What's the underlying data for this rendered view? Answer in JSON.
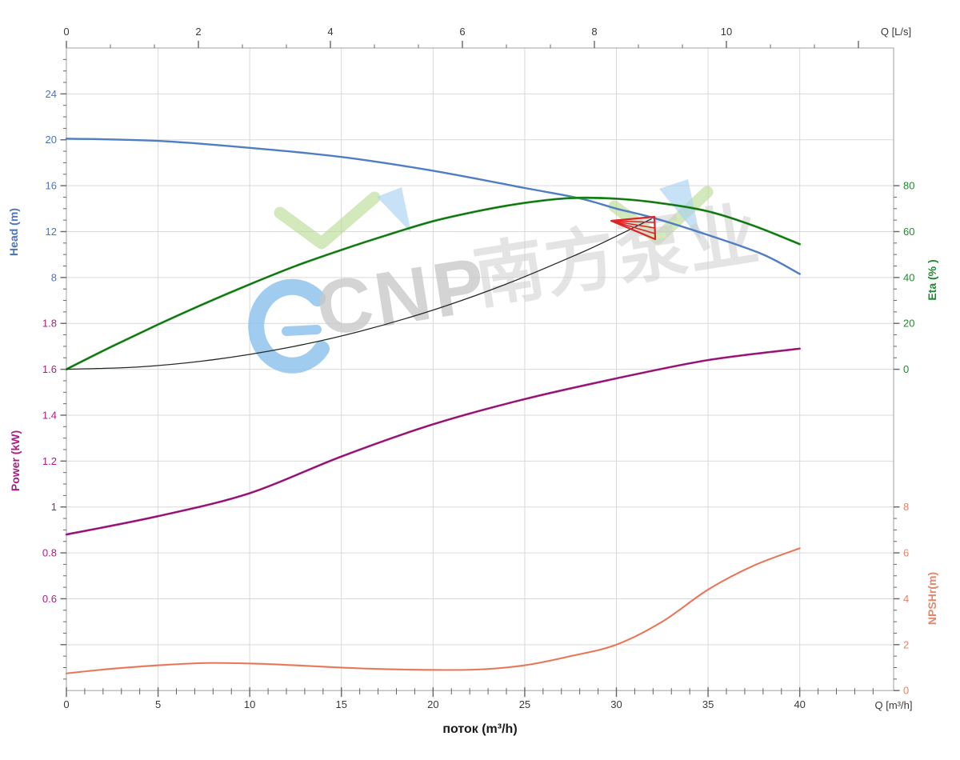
{
  "watermark": {
    "brand": "CNP",
    "cn_text": "南方泵业"
  },
  "labels": {
    "top_axis_unit": "Q [L/s]",
    "bottom_axis_unit": "Q [m³/h]",
    "x_title": "поток (m³/h)",
    "head_title": "Head (m)",
    "power_title": "Power (kW)",
    "eta_title": "Eta (% )",
    "npshr_title": "NPSHr(m)"
  },
  "colors": {
    "head": "#4a74c4",
    "head_curve": "#4f7ec2",
    "power": "#aa1d85",
    "power_curve": "#b02590",
    "power_core": "#7d0f5e",
    "eta": "#1f8b2e",
    "eta_curve": "#2a9a2a",
    "eta_core": "#0d5c0d",
    "npshr": "#e8846a",
    "npshr_curve": "#ee8a70",
    "npshr_core": "#e2704f",
    "system_curve": "#222b22",
    "flag": "#e12222",
    "grid": "#d9d9d9",
    "border": "#b0b0b0",
    "tick": "#666666",
    "axis_text": "#3a3a3a"
  },
  "chart_data": {
    "type": "line",
    "title": "",
    "grid": true,
    "x_axis": {
      "label": "поток (m³/h)",
      "unit": "m³/h",
      "range": [
        0,
        45
      ],
      "major_ticks": [
        0,
        5,
        10,
        15,
        20,
        25,
        30,
        35,
        40
      ],
      "minor_step": 1
    },
    "top_axis": {
      "unit": "L/s",
      "range": [
        0,
        12.5
      ],
      "major_ticks": [
        0,
        2,
        4,
        6,
        8,
        10
      ],
      "unlabeled_major": [
        12
      ],
      "minor_step": 0.6667
    },
    "y_axes": [
      {
        "id": "head",
        "label": "Head (m)",
        "ticks": [
          24,
          20,
          16,
          12,
          8
        ],
        "row_start": 1
      },
      {
        "id": "power",
        "label": "Power (kW)",
        "ticks": [
          1.8,
          1.6,
          1.4,
          1.2,
          1,
          0.8,
          0.6
        ],
        "row_start": 6
      },
      {
        "id": "eta",
        "label": "Eta (% )",
        "ticks": [
          80,
          60,
          40,
          20,
          0
        ],
        "row_start": 3
      },
      {
        "id": "npshr",
        "label": "NPSHr(m)",
        "ticks": [
          8,
          6,
          4,
          2,
          0
        ],
        "row_start": 10
      }
    ],
    "series": [
      {
        "name": "head",
        "axis": "head",
        "width": 2.4,
        "x": [
          0,
          5,
          10,
          15,
          20,
          25,
          28,
          30,
          32,
          35,
          38,
          40
        ],
        "y": [
          20.1,
          19.9,
          19.3,
          18.5,
          17.3,
          15.8,
          14.9,
          14.0,
          13.2,
          11.7,
          10.0,
          8.3
        ]
      },
      {
        "name": "eta",
        "axis": "eta",
        "width": 2.8,
        "x": [
          0,
          2.5,
          5,
          7.5,
          10,
          12.5,
          15,
          17.5,
          20,
          22.5,
          25,
          27.5,
          30,
          32.5,
          35,
          37.5,
          40
        ],
        "y": [
          0,
          10,
          19.5,
          28.5,
          37,
          45,
          52,
          58.5,
          64.5,
          69,
          72.5,
          74.6,
          74.3,
          72.3,
          68.8,
          62.5,
          54.5
        ]
      },
      {
        "name": "system",
        "axis": "head",
        "width": 1.3,
        "x": [
          0,
          4,
          8,
          12,
          16,
          20,
          24,
          28,
          30,
          31.9
        ],
        "y": [
          0,
          0.21,
          0.83,
          1.86,
          3.3,
          5.16,
          7.43,
          10.11,
          11.6,
          13.1
        ]
      },
      {
        "name": "power",
        "axis": "power",
        "width": 2.6,
        "x": [
          0,
          5,
          10,
          15,
          20,
          25,
          30,
          35,
          40
        ],
        "y": [
          0.88,
          0.96,
          1.06,
          1.22,
          1.36,
          1.47,
          1.56,
          1.64,
          1.69
        ]
      },
      {
        "name": "npshr",
        "axis": "npshr",
        "width": 2.2,
        "x": [
          0,
          2.5,
          5,
          7.5,
          10,
          12.5,
          15,
          17.5,
          20,
          22.5,
          25,
          27.5,
          30,
          32.5,
          35,
          37.5,
          40
        ],
        "y": [
          0.75,
          0.95,
          1.1,
          1.2,
          1.18,
          1.1,
          1.0,
          0.93,
          0.9,
          0.92,
          1.1,
          1.5,
          2.0,
          3.0,
          4.4,
          5.45,
          6.2
        ]
      }
    ],
    "duty_point": {
      "q_m3h": 32,
      "head_m": 13.1
    }
  }
}
